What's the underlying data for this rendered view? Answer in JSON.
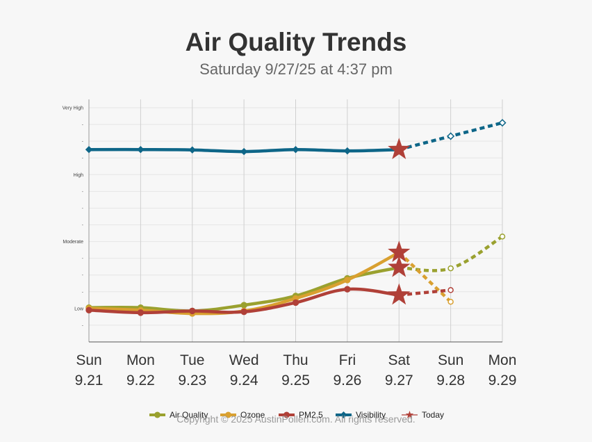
{
  "title": "Air Quality Trends",
  "subtitle": "Saturday 9/27/25 at 4:37 pm",
  "copyright": "Copyright © 2025 AustinPollen.com.  All rights reserved.",
  "chart_data": {
    "type": "line",
    "title": "Air Quality Trends",
    "subtitle": "Saturday 9/27/25 at 4:37 pm",
    "categories": [
      {
        "day": "Sun",
        "date": "9.21"
      },
      {
        "day": "Mon",
        "date": "9.22"
      },
      {
        "day": "Tue",
        "date": "9.23"
      },
      {
        "day": "Wed",
        "date": "9.24"
      },
      {
        "day": "Thu",
        "date": "9.25"
      },
      {
        "day": "Fri",
        "date": "9.26"
      },
      {
        "day": "Sat",
        "date": "9.27"
      },
      {
        "day": "Sun",
        "date": "9.28"
      },
      {
        "day": "Mon",
        "date": "9.29"
      }
    ],
    "ylim": [
      0,
      14.5
    ],
    "y_levels": [
      {
        "label": "Low",
        "value": 2
      },
      {
        "label": "Moderate",
        "value": 6
      },
      {
        "label": "High",
        "value": 10
      },
      {
        "label": "Very High",
        "value": 14
      }
    ],
    "y_minor_tick_label": "-",
    "today_index": 6,
    "grid": true,
    "legend_position": "bottom",
    "series": [
      {
        "name": "Air Quality",
        "color": "#9aa12f",
        "marker": "circle",
        "values": [
          2.05,
          2.05,
          1.85,
          2.2,
          2.75,
          3.8,
          4.45,
          4.4,
          6.3
        ]
      },
      {
        "name": "Ozone",
        "color": "#d9a030",
        "marker": "circle",
        "values": [
          2.0,
          1.9,
          1.7,
          1.85,
          2.6,
          3.7,
          5.35,
          2.4,
          null
        ]
      },
      {
        "name": "PM2.5",
        "color": "#b04038",
        "marker": "circle",
        "values": [
          1.9,
          1.75,
          1.85,
          1.8,
          2.35,
          3.15,
          2.8,
          3.1,
          null
        ]
      },
      {
        "name": "Visibility",
        "color": "#0e6688",
        "marker": "diamond",
        "values": [
          11.5,
          11.5,
          11.48,
          11.38,
          11.5,
          11.42,
          11.5,
          12.3,
          13.1
        ]
      }
    ],
    "legend": [
      {
        "name": "Air Quality",
        "color": "#9aa12f"
      },
      {
        "name": "Ozone",
        "color": "#d9a030"
      },
      {
        "name": "PM2.5",
        "color": "#b04038"
      },
      {
        "name": "Visibility",
        "color": "#0e6688"
      },
      {
        "name": "Today",
        "color": "#b04038"
      }
    ]
  }
}
